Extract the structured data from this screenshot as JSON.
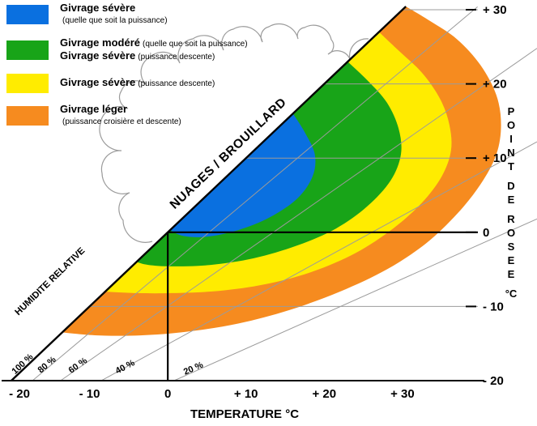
{
  "colors": {
    "blue": "#0a70e0",
    "green": "#18a418",
    "yellow": "#ffec00",
    "orange": "#f68b1f",
    "grid": "#9b9b9b",
    "axis": "#000000",
    "background": "#ffffff"
  },
  "legend": {
    "items": [
      {
        "zone": "givrage-severe",
        "color": "blue",
        "lines": [
          {
            "bold": "Givrage sévère",
            "small": ""
          },
          {
            "bold": "",
            "small": "(quelle que soit la puissance)"
          }
        ]
      },
      {
        "zone": "givrage-modere",
        "color": "green",
        "lines": [
          {
            "bold": "Givrage modéré",
            "small": "(quelle que soit la puissance)"
          },
          {
            "bold": "Givrage sévère",
            "small": "(puissance descente)"
          }
        ]
      },
      {
        "zone": "givrage-severe-descente",
        "color": "yellow",
        "lines": [
          {
            "bold": "Givrage sévère",
            "small": "(puissance descente)"
          }
        ]
      },
      {
        "zone": "givrage-leger",
        "color": "orange",
        "lines": [
          {
            "bold": "Givrage léger",
            "small": ""
          },
          {
            "bold": "",
            "small": "(puissance croisière et descente)"
          }
        ]
      }
    ]
  },
  "chart_data": {
    "type": "area",
    "xlabel": "TEMPERATURE °C",
    "ylabel_words": [
      "POINT",
      "DE",
      "ROSEE",
      "°C"
    ],
    "xlim": [
      -20,
      47.2
    ],
    "ylim": [
      -20,
      30.44
    ],
    "x_ticks": [
      {
        "t": -20,
        "label": "- 20"
      },
      {
        "t": -10,
        "label": "- 10"
      },
      {
        "t": 0,
        "label": "0"
      },
      {
        "t": 10,
        "label": "+ 10"
      },
      {
        "t": 20,
        "label": "+ 20"
      },
      {
        "t": 30,
        "label": "+ 30"
      }
    ],
    "y_ticks": [
      {
        "d": 30,
        "label": "+ 30"
      },
      {
        "d": 20,
        "label": "+ 20"
      },
      {
        "d": 10,
        "label": "+ 10"
      },
      {
        "d": 0,
        "label": "0"
      },
      {
        "d": -10,
        "label": "- 10"
      },
      {
        "d": -20,
        "label": "- 20"
      }
    ],
    "saturation_line": {
      "label": "NUAGES / BROUILLARD",
      "from": [
        -20,
        -20
      ],
      "to": [
        30.44,
        30.44
      ]
    },
    "humidity_axis_label": "HUMIDITE RELATIVE",
    "humidity_lines": [
      {
        "label": "100 %",
        "main": true,
        "from": [
          -20,
          -20
        ],
        "to": [
          30.44,
          30.44
        ]
      },
      {
        "label": "80 %",
        "main": false,
        "from": [
          -17.3,
          -20
        ],
        "to": [
          39.6,
          30.4
        ]
      },
      {
        "label": "60 %",
        "main": false,
        "from": [
          -13.7,
          -20
        ],
        "to": [
          47.2,
          24.8
        ]
      },
      {
        "label": "40 %",
        "main": false,
        "from": [
          -8.5,
          -20
        ],
        "to": [
          47.2,
          12.2
        ]
      },
      {
        "label": "20 %",
        "main": false,
        "from": [
          0.8,
          -20
        ],
        "to": [
          47.2,
          1.8
        ]
      }
    ],
    "zones": [
      {
        "name": "givrage-leger",
        "color": "orange",
        "diag": [
          -13.5,
          30.44
        ],
        "outer": [
          [
            33.5,
            28.5
          ],
          [
            37,
            26
          ],
          [
            40,
            22.5
          ],
          [
            42,
            18.5
          ],
          [
            42.6,
            14.5
          ],
          [
            42,
            10.5
          ],
          [
            40,
            6.5
          ],
          [
            37,
            2.5
          ],
          [
            33,
            -1.5
          ],
          [
            28,
            -5
          ],
          [
            22,
            -8
          ],
          [
            15.5,
            -10.5
          ],
          [
            9,
            -12.3
          ],
          [
            2.5,
            -13.4
          ],
          [
            -3.5,
            -13.9
          ],
          [
            -9,
            -13.9
          ]
        ]
      },
      {
        "name": "givrage-severe-descente",
        "color": "yellow",
        "diag": [
          -8,
          27
        ],
        "outer": [
          [
            29.5,
            24.5
          ],
          [
            32.5,
            21.5
          ],
          [
            34.8,
            18
          ],
          [
            36,
            14.5
          ],
          [
            36.2,
            11
          ],
          [
            35,
            7.5
          ],
          [
            32.5,
            4
          ],
          [
            28.8,
            0.5
          ],
          [
            24,
            -2.8
          ],
          [
            18.5,
            -5.3
          ],
          [
            12.5,
            -7
          ],
          [
            6.5,
            -7.9
          ],
          [
            0.5,
            -8.2
          ],
          [
            -4,
            -8.2
          ]
        ]
      },
      {
        "name": "givrage-modere",
        "color": "green",
        "diag": [
          -4,
          23
        ],
        "outer": [
          [
            25.5,
            20.5
          ],
          [
            28,
            17.5
          ],
          [
            29.5,
            14
          ],
          [
            29.8,
            10.5
          ],
          [
            28.5,
            7
          ],
          [
            25.5,
            3.5
          ],
          [
            21.5,
            0.5
          ],
          [
            16.5,
            -1.8
          ],
          [
            11,
            -3.5
          ],
          [
            5.5,
            -4.4
          ],
          [
            0.5,
            -4.6
          ],
          [
            -2.5,
            -4.4
          ]
        ]
      },
      {
        "name": "givrage-severe",
        "color": "blue",
        "diag": [
          0.3,
          16
        ],
        "outer": [
          [
            17.5,
            13.5
          ],
          [
            18.8,
            10.5
          ],
          [
            18.5,
            7.5
          ],
          [
            16.5,
            4.5
          ],
          [
            13,
            2
          ],
          [
            9,
            0.3
          ],
          [
            5,
            -0.6
          ],
          [
            2,
            -0.5
          ]
        ]
      }
    ],
    "reference_lines": {
      "temp_zero": 0,
      "dew_zero": 0
    }
  }
}
